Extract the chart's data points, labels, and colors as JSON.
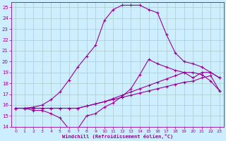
{
  "xlabel": "Windchill (Refroidissement éolien,°C)",
  "xlim": [
    -0.5,
    23.5
  ],
  "ylim": [
    14,
    25.5
  ],
  "yticks": [
    14,
    15,
    16,
    17,
    18,
    19,
    20,
    21,
    22,
    23,
    24,
    25
  ],
  "xticks": [
    0,
    1,
    2,
    3,
    4,
    5,
    6,
    7,
    8,
    9,
    10,
    11,
    12,
    13,
    14,
    15,
    16,
    17,
    18,
    19,
    20,
    21,
    22,
    23
  ],
  "bg_color": "#cceeff",
  "grid_color": "#aacccc",
  "line_color": "#990099",
  "line1_x": [
    0,
    1,
    2,
    3,
    4,
    5,
    6,
    7,
    8,
    9,
    10,
    11,
    12,
    13,
    14,
    15,
    16,
    17,
    18,
    19,
    20,
    21,
    22,
    23
  ],
  "line1_y": [
    15.7,
    15.7,
    15.5,
    15.5,
    15.2,
    14.8,
    13.8,
    13.8,
    15.0,
    15.2,
    15.8,
    16.2,
    16.8,
    17.5,
    18.8,
    20.2,
    19.8,
    19.5,
    19.2,
    19.0,
    18.5,
    19.0,
    19.0,
    18.5
  ],
  "line2_x": [
    0,
    1,
    2,
    3,
    4,
    5,
    6,
    7,
    8,
    9,
    10,
    11,
    12,
    13,
    14,
    15,
    16,
    17,
    18,
    19,
    20,
    21,
    22,
    23
  ],
  "line2_y": [
    15.7,
    15.7,
    15.7,
    15.7,
    15.7,
    15.7,
    15.7,
    15.7,
    15.9,
    16.1,
    16.3,
    16.5,
    16.7,
    16.9,
    17.1,
    17.3,
    17.5,
    17.7,
    17.9,
    18.1,
    18.2,
    18.5,
    18.7,
    17.3
  ],
  "line3_x": [
    0,
    1,
    2,
    3,
    4,
    5,
    6,
    7,
    8,
    9,
    10,
    11,
    12,
    13,
    14,
    15,
    16,
    17,
    18,
    19,
    20,
    21,
    22,
    23
  ],
  "line3_y": [
    15.7,
    15.7,
    15.7,
    15.7,
    15.7,
    15.7,
    15.7,
    15.7,
    15.9,
    16.1,
    16.3,
    16.6,
    16.9,
    17.2,
    17.5,
    17.8,
    18.1,
    18.4,
    18.7,
    19.0,
    19.0,
    18.8,
    18.2,
    17.3
  ],
  "line4_x": [
    0,
    1,
    2,
    3,
    4,
    5,
    6,
    7,
    8,
    9,
    10,
    11,
    12,
    13,
    14,
    15,
    16,
    17,
    18,
    19,
    20,
    21,
    22,
    23
  ],
  "line4_y": [
    15.7,
    15.7,
    15.8,
    16.0,
    16.5,
    17.2,
    18.3,
    19.5,
    20.5,
    21.5,
    23.8,
    24.8,
    25.2,
    25.2,
    25.2,
    24.8,
    24.5,
    22.5,
    20.8,
    20.0,
    19.8,
    19.5,
    19.0,
    18.5
  ]
}
